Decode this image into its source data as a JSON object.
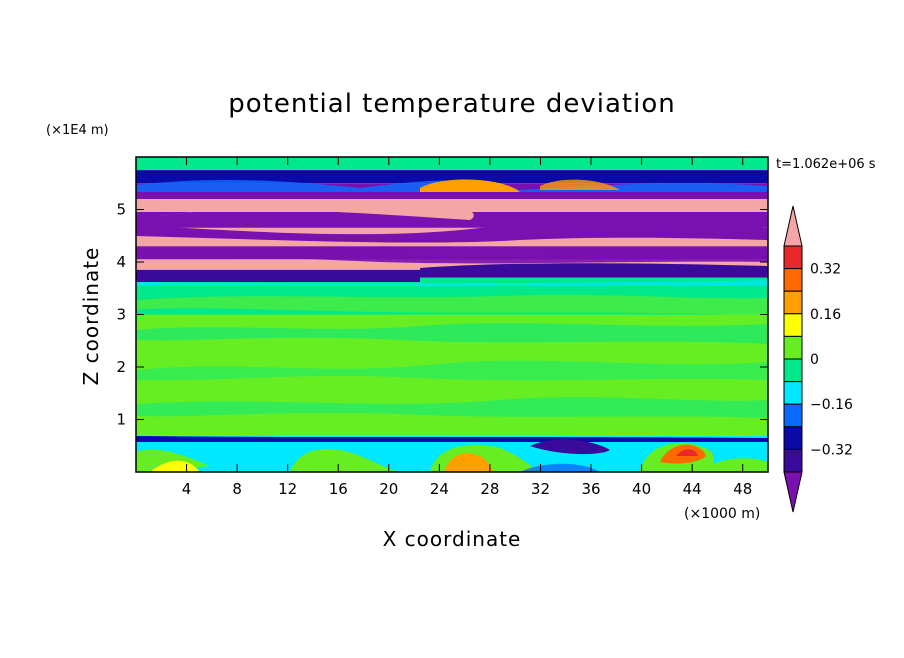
{
  "chart_data": {
    "type": "heatmap",
    "title": "potential temperature deviation",
    "xlabel": "X coordinate",
    "ylabel": "Z coordinate",
    "x_unit": "(×1000 m)",
    "y_unit": "(×1E4 m)",
    "time_label": "t=1.062e+06 s",
    "xlim": [
      0,
      50
    ],
    "ylim": [
      0,
      6
    ],
    "x_ticks": [
      4,
      8,
      12,
      16,
      20,
      24,
      28,
      32,
      36,
      40,
      44,
      48
    ],
    "y_ticks": [
      1,
      2,
      3,
      4,
      5
    ],
    "colorbar": {
      "levels": [
        -0.4,
        -0.32,
        -0.24,
        -0.16,
        -0.08,
        0,
        0.08,
        0.16,
        0.24,
        0.32,
        0.4
      ],
      "labeled_levels": [
        0.32,
        0.16,
        0,
        -0.16,
        -0.32
      ],
      "colors_top_to_bottom": [
        "#f4a6a6",
        "#e8282a",
        "#ff6a00",
        "#ff9f00",
        "#ffff00",
        "#66ee22",
        "#00e88a",
        "#00e8ff",
        "#0a6aff",
        "#0a0aa8",
        "#3a0a9a",
        "#7a10b0"
      ],
      "extend": "both"
    },
    "bands": [
      {
        "z_bottom": 5.75,
        "z_top": 6.0,
        "color": "#00e88a"
      },
      {
        "z_bottom": 5.5,
        "z_top": 5.75,
        "color": "#0a0aa8"
      },
      {
        "z_bottom": 5.2,
        "z_top": 5.5,
        "color": "#7a10b0"
      },
      {
        "z_bottom": 5.0,
        "z_top": 5.2,
        "color": "#f4a6a6"
      },
      {
        "z_bottom": 4.65,
        "z_top": 5.0,
        "color": "#7a10b0"
      },
      {
        "z_bottom": 4.3,
        "z_top": 4.65,
        "color": "#f4a6a6"
      },
      {
        "z_bottom": 4.05,
        "z_top": 4.3,
        "color": "#7a10b0"
      },
      {
        "z_bottom": 3.85,
        "z_top": 4.05,
        "color": "#f4a6a6"
      },
      {
        "z_bottom": 3.7,
        "z_top": 3.85,
        "color": "#3a0a9a"
      },
      {
        "z_bottom": 3.0,
        "z_top": 3.7,
        "color": "#00e88a"
      },
      {
        "z_bottom": 0.7,
        "z_top": 3.0,
        "color": "#66ee22"
      },
      {
        "z_bottom": 0.0,
        "z_top": 0.7,
        "color": "#00e8ff"
      }
    ]
  }
}
